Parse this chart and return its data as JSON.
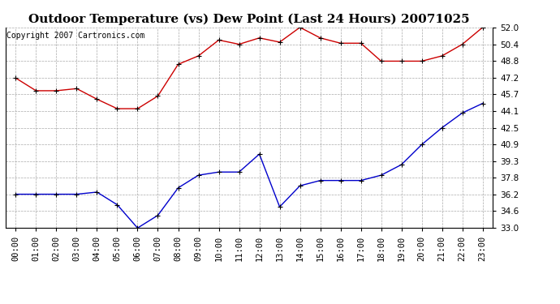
{
  "title": "Outdoor Temperature (vs) Dew Point (Last 24 Hours) 20071025",
  "copyright": "Copyright 2007 Cartronics.com",
  "x_labels": [
    "00:00",
    "01:00",
    "02:00",
    "03:00",
    "04:00",
    "05:00",
    "06:00",
    "07:00",
    "08:00",
    "09:00",
    "10:00",
    "11:00",
    "12:00",
    "13:00",
    "14:00",
    "15:00",
    "16:00",
    "17:00",
    "18:00",
    "19:00",
    "20:00",
    "21:00",
    "22:00",
    "23:00"
  ],
  "temp_data": [
    47.2,
    46.0,
    46.0,
    46.2,
    45.2,
    44.3,
    44.3,
    45.5,
    48.5,
    49.3,
    50.8,
    50.4,
    51.0,
    50.6,
    52.0,
    51.0,
    50.5,
    50.5,
    48.8,
    48.8,
    48.8,
    49.3,
    50.4,
    52.0
  ],
  "dew_data": [
    36.2,
    36.2,
    36.2,
    36.2,
    36.4,
    35.2,
    33.0,
    34.2,
    36.8,
    38.0,
    38.3,
    38.3,
    40.0,
    35.0,
    37.0,
    37.5,
    37.5,
    37.5,
    38.0,
    39.0,
    40.9,
    42.5,
    43.9,
    44.8
  ],
  "temp_color": "#cc0000",
  "dew_color": "#0000cc",
  "bg_color": "#ffffff",
  "plot_bg_color": "#ffffff",
  "grid_color": "#aaaaaa",
  "ylim_min": 33.0,
  "ylim_max": 52.0,
  "yticks": [
    33.0,
    34.6,
    36.2,
    37.8,
    39.3,
    40.9,
    42.5,
    44.1,
    45.7,
    47.2,
    48.8,
    50.4,
    52.0
  ],
  "title_fontsize": 11,
  "copyright_fontsize": 7,
  "tick_fontsize": 7.5
}
